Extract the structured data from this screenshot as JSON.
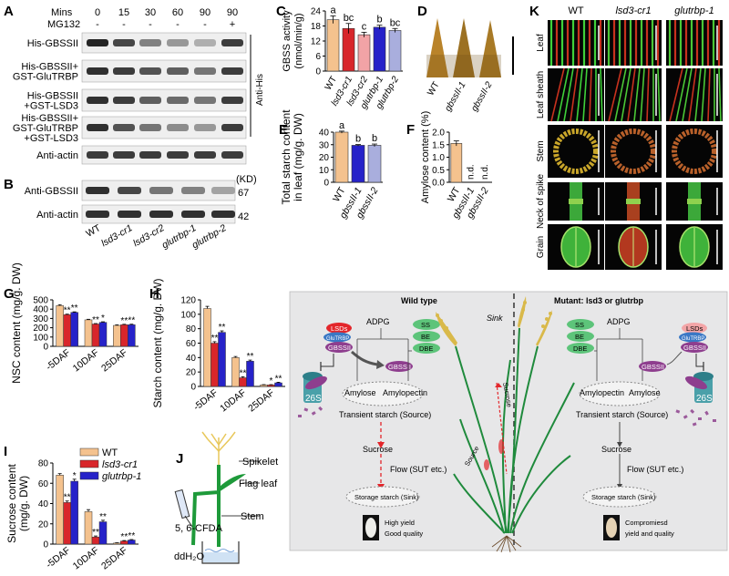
{
  "panels": {
    "A": "A",
    "B": "B",
    "C": "C",
    "D": "D",
    "E": "E",
    "F": "F",
    "G": "G",
    "H": "H",
    "I": "I",
    "J": "J",
    "K": "K",
    "L": "L"
  },
  "panel_a": {
    "mins_label": "Mins",
    "mins": [
      "0",
      "15",
      "30",
      "60",
      "90",
      "90"
    ],
    "mg132_label": "MG132",
    "mg132": [
      "-",
      "-",
      "-",
      "-",
      "-",
      "+"
    ],
    "rows": [
      {
        "label": [
          "His-GBSSII"
        ],
        "intensity": [
          0.95,
          0.8,
          0.55,
          0.45,
          0.35,
          0.85
        ]
      },
      {
        "label": [
          "His-GBSSII+",
          "GST-GluTRBP"
        ],
        "intensity": [
          0.9,
          0.85,
          0.75,
          0.7,
          0.6,
          0.85
        ]
      },
      {
        "label": [
          "His-GBSSII",
          "+GST-LSD3"
        ],
        "intensity": [
          0.9,
          0.85,
          0.7,
          0.65,
          0.6,
          0.85
        ]
      },
      {
        "label": [
          "His-GBSSII+",
          "GST-GluTRBP",
          "+GST-LSD3"
        ],
        "intensity": [
          0.9,
          0.75,
          0.6,
          0.5,
          0.45,
          0.85
        ]
      },
      {
        "label": [
          "Anti-actin"
        ],
        "intensity": [
          0.85,
          0.85,
          0.85,
          0.85,
          0.85,
          0.85
        ]
      }
    ],
    "side_label": "Anti-His"
  },
  "panel_b": {
    "rows": [
      {
        "label": "Anti-GBSSII",
        "intensity": [
          0.9,
          0.8,
          0.6,
          0.55,
          0.4
        ]
      },
      {
        "label": "Anti-actin",
        "intensity": [
          0.9,
          0.9,
          0.9,
          0.9,
          0.9
        ]
      }
    ],
    "kd_label": "(KD)",
    "mw": [
      "67",
      "42"
    ],
    "lanes": [
      "WT",
      "lsd3-cr1",
      "lsd3-cr2",
      "glutrbp-1",
      "glutrbp-2"
    ]
  },
  "panel_k": {
    "cols": [
      "WT",
      "lsd3-cr1",
      "glutrbp-1"
    ],
    "rows": [
      "Leaf",
      "Leaf sheath",
      "Stem",
      "Neck of spike",
      "Grain"
    ]
  },
  "panel_d": {
    "labels": [
      "WT",
      "gbssII-1",
      "gbssII-2"
    ]
  },
  "panel_j": {
    "spikelet": "Spikelet",
    "flag_leaf": "Flag leaf",
    "stem": "Stem",
    "cfda": "5, 6-CFDA",
    "water": "ddH₂O"
  },
  "panel_l": {
    "wt_title": "Wild type",
    "mut_title": "Mutant: lsd3 or glutrbp",
    "lsds": "LSDs",
    "glutrbp": "GluTRBP",
    "gbssii": "GBSSII",
    "adpg": "ADPG",
    "ss": "SS",
    "be": "BE",
    "dbe": "DBE",
    "amylose": "Amylose",
    "amylopectin": "Amylopectin",
    "transient": "Transient starch (Source)",
    "sucrose": "Sucrose",
    "flow": "Flow (SUT etc.)",
    "storage": "Storage starch (Sink)",
    "proteasome": "26S",
    "wt_outcome": [
      "High yield",
      "Good quality"
    ],
    "mut_outcome": [
      "Compromiesd",
      "yield and quality"
    ],
    "sink": "Sink",
    "source": "Source",
    "plant_sucrose": "Sucrose"
  },
  "chart_data": [
    {
      "panel": "C",
      "type": "bar",
      "categories": [
        "WT",
        "lsd3-cr1",
        "lsd3-cr2",
        "glutrbp-1",
        "glutrbp-2"
      ],
      "values": [
        20.5,
        17,
        14.5,
        17.5,
        16.2
      ],
      "errors": [
        1.5,
        2.0,
        1.0,
        0.8,
        0.8
      ],
      "letters": [
        "a",
        "bc",
        "c",
        "b",
        "bc"
      ],
      "ylabel": [
        "GBSS activity",
        "(nmol/min/g)"
      ],
      "ylim": [
        0,
        24
      ],
      "yticks": [
        0,
        6,
        12,
        18,
        24
      ],
      "colors": [
        "#f4c28e",
        "#d8262b",
        "#f2a3a6",
        "#2622c9",
        "#a9aedd"
      ]
    },
    {
      "panel": "E",
      "type": "bar",
      "categories": [
        "WT",
        "gbssII-1",
        "gbssII-2"
      ],
      "values": [
        40,
        29.5,
        29.5
      ],
      "errors": [
        0.8,
        0.6,
        1.0
      ],
      "letters": [
        "a",
        "b",
        "b"
      ],
      "ylabel": [
        "Total starch content",
        "in leaf (mg/g. DW)"
      ],
      "ylim": [
        0,
        40
      ],
      "yticks": [
        0,
        10,
        20,
        30,
        40
      ],
      "colors": [
        "#f4c28e",
        "#2622c9",
        "#a9aedd"
      ]
    },
    {
      "panel": "F",
      "type": "bar",
      "categories": [
        "WT",
        "gbssII-1",
        "gbssII-2"
      ],
      "values": [
        1.55,
        null,
        null
      ],
      "errors": [
        0.1,
        0,
        0
      ],
      "annotations": [
        "",
        "n.d.",
        "n.d."
      ],
      "ylabel": [
        "Amylose content (%)"
      ],
      "ylim": [
        0,
        2
      ],
      "yticks": [
        0,
        0.5,
        1.0,
        1.5,
        2.0
      ],
      "colors": [
        "#f4c28e",
        "#2622c9",
        "#a9aedd"
      ]
    },
    {
      "panel": "G",
      "type": "bar",
      "categories": [
        "-5DAF",
        "10DAF",
        "25DAF"
      ],
      "series": [
        {
          "values": [
            438,
            285,
            225
          ],
          "errors": [
            10,
            6,
            6
          ],
          "stars": [
            "",
            "",
            ""
          ]
        },
        {
          "values": [
            340,
            240,
            232
          ],
          "errors": [
            6,
            5,
            5
          ],
          "stars": [
            "**",
            "**",
            "**"
          ]
        },
        {
          "values": [
            365,
            258,
            232
          ],
          "errors": [
            6,
            6,
            6
          ],
          "stars": [
            "**",
            "*",
            "**"
          ]
        }
      ],
      "ylabel": [
        "NSC content (mg/g. DW)"
      ],
      "ylim": [
        0,
        500
      ],
      "yticks": [
        0,
        100,
        200,
        300,
        400,
        500
      ],
      "colors": [
        "#f4c28e",
        "#d8262b",
        "#2622c9"
      ]
    },
    {
      "panel": "H",
      "type": "bar",
      "categories": [
        "-5DAF",
        "10DAF",
        "25DAF"
      ],
      "series": [
        {
          "values": [
            108,
            40,
            2
          ],
          "errors": [
            3,
            1.5,
            0.5
          ],
          "stars": [
            "",
            "",
            ""
          ]
        },
        {
          "values": [
            60,
            12,
            2
          ],
          "errors": [
            2,
            1.5,
            0.5
          ],
          "stars": [
            "**",
            "**",
            "*"
          ]
        },
        {
          "values": [
            75,
            35,
            5
          ],
          "errors": [
            2,
            1.5,
            0.8
          ],
          "stars": [
            "**",
            "**",
            "**"
          ]
        }
      ],
      "ylabel": [
        "Starch content (mg/g. DW)"
      ],
      "ylim": [
        0,
        120
      ],
      "yticks": [
        0,
        20,
        40,
        60,
        80,
        100,
        120
      ],
      "colors": [
        "#f4c28e",
        "#d8262b",
        "#2622c9"
      ]
    },
    {
      "panel": "I",
      "type": "bar",
      "categories": [
        "-5DAF",
        "10DAF",
        "25DAF"
      ],
      "series": [
        {
          "name": "WT",
          "values": [
            68,
            32,
            1
          ],
          "errors": [
            1.5,
            2,
            0.3
          ],
          "stars": [
            "",
            "",
            ""
          ]
        },
        {
          "name": "lsd3-cr1",
          "values": [
            41,
            7,
            3
          ],
          "errors": [
            1.5,
            1,
            0.5
          ],
          "stars": [
            "**",
            "**",
            "**"
          ]
        },
        {
          "name": "glutrbp-1",
          "values": [
            62,
            22,
            4
          ],
          "errors": [
            2,
            1.5,
            0.5
          ],
          "stars": [
            "*",
            "**",
            "**"
          ]
        }
      ],
      "ylabel": [
        "Sucrose content",
        "(mg/g. DW)"
      ],
      "ylim": [
        0,
        80
      ],
      "yticks": [
        0,
        20,
        40,
        60,
        80
      ],
      "colors": [
        "#f4c28e",
        "#d8262b",
        "#2622c9"
      ]
    }
  ]
}
